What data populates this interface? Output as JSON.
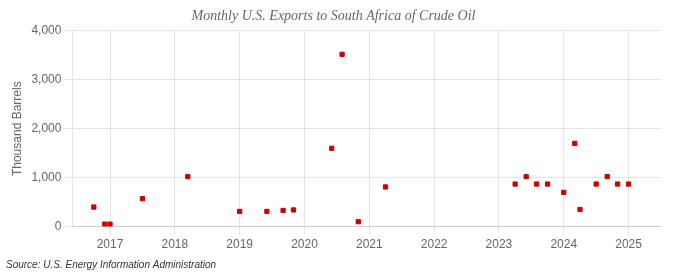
{
  "chart_data": {
    "type": "scatter",
    "title": "Monthly U.S. Exports to South Africa of Crude Oil",
    "ylabel": "Thousand Barrels",
    "annotation": "Source: U.S. Energy Information Administration",
    "x": [
      2016.75,
      2016.92,
      2017.0,
      2017.5,
      2018.2,
      2019.0,
      2019.42,
      2019.67,
      2019.83,
      2020.42,
      2020.58,
      2020.83,
      2021.25,
      2023.25,
      2023.42,
      2023.58,
      2023.75,
      2024.0,
      2024.17,
      2024.25,
      2024.5,
      2024.67,
      2024.83,
      2025.0
    ],
    "values": [
      400,
      50,
      50,
      570,
      1020,
      310,
      310,
      330,
      340,
      1600,
      3520,
      100,
      810,
      870,
      1020,
      870,
      870,
      700,
      1700,
      350,
      870,
      1020,
      870,
      870
    ],
    "color": "#cc0000",
    "marker": "square",
    "grid": true,
    "xlim": [
      2016.42,
      2025.5
    ],
    "xticks": [
      2017,
      2018,
      2019,
      2020,
      2021,
      2022,
      2023,
      2024,
      2025
    ],
    "ylim": [
      0,
      4000
    ],
    "yticks": [
      0,
      {
        "value": 1000,
        "label": "1,000"
      },
      {
        "value": 2000,
        "label": "2,000"
      },
      {
        "value": 3000,
        "label": "3,000"
      },
      {
        "value": 4000,
        "label": "4,000"
      }
    ]
  }
}
